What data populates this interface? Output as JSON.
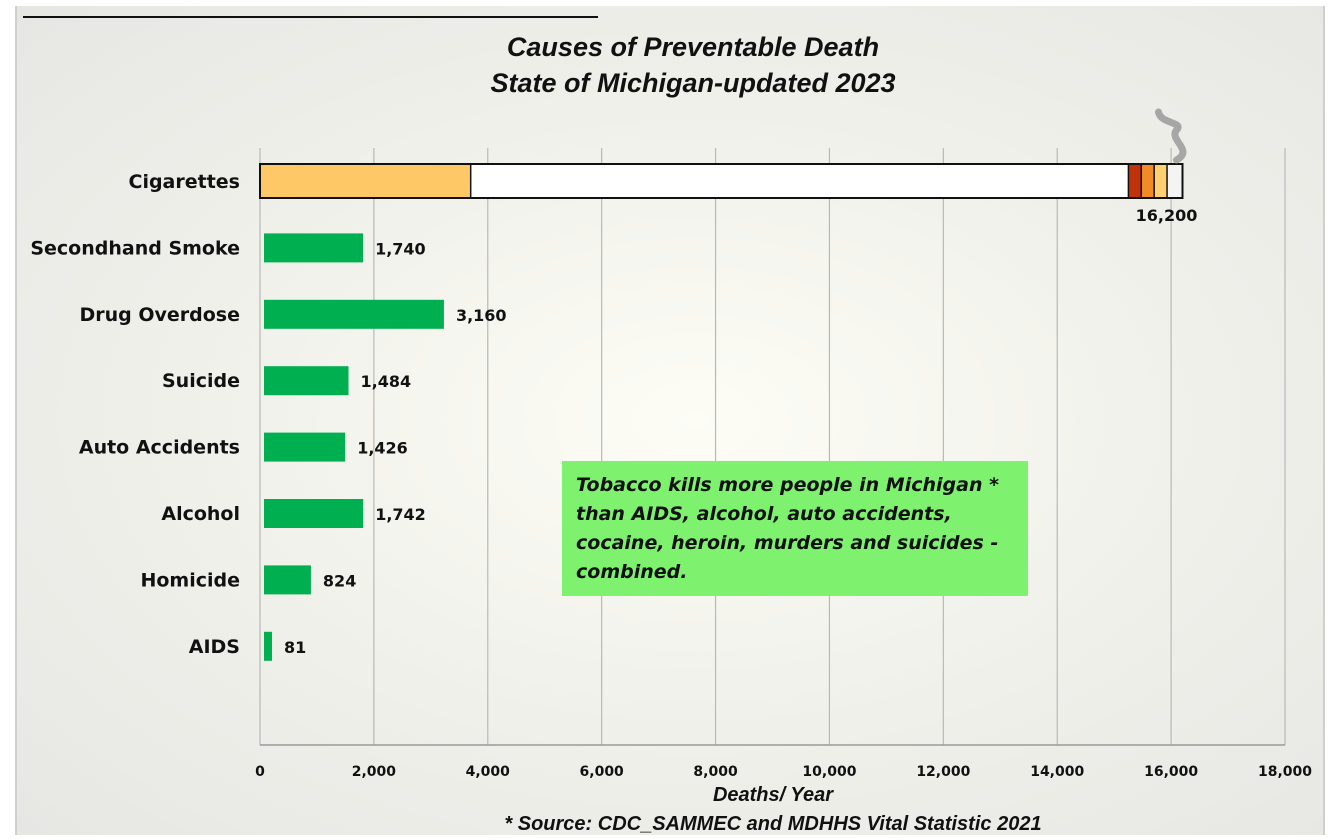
{
  "chart_data": {
    "type": "bar",
    "orientation": "horizontal",
    "title": "Causes of Preventable Death",
    "subtitle": "State of Michigan-updated 2023",
    "categories": [
      "Cigarettes",
      "Secondhand Smoke",
      "Drug Overdose",
      "Suicide",
      "Auto Accidents",
      "Alcohol",
      "Homicide",
      "AIDS"
    ],
    "values": [
      16200,
      1740,
      3160,
      1484,
      1426,
      1742,
      824,
      81
    ],
    "value_labels": [
      "16,200",
      "1,740",
      "3,160",
      "1,484",
      "1,426",
      "1,742",
      "824",
      "81"
    ],
    "xlabel": "Deaths/ Year",
    "xlim": [
      0,
      18000
    ],
    "xticks": [
      0,
      2000,
      4000,
      6000,
      8000,
      10000,
      12000,
      14000,
      16000,
      18000
    ],
    "xtick_labels": [
      "0",
      "2,000",
      "4,000",
      "6,000",
      "8,000",
      "10,000",
      "12,000",
      "14,000",
      "16,000",
      "18,000"
    ],
    "grid": "vertical",
    "colors": {
      "bar": "#00b050",
      "cigarette_filter": "#ffc866",
      "cigarette_paper": "#ffffff",
      "ember_dark": "#c0330a",
      "ember_mid": "#f08c28",
      "ember_light": "#ffd070",
      "callout_bg": "#7ef26f"
    },
    "annotation": "Tobacco kills more people in Michigan * than AIDS, alcohol, auto accidents, cocaine, heroin, murders and suicides - combined.",
    "source": "* Source: CDC_SAMMEC and MDHHS Vital  Statistic 2021"
  },
  "callout_lines": [
    "Tobacco kills more people in Michigan *",
    "than AIDS, alcohol, auto accidents,",
    "cocaine, heroin, murders and suicides -",
    "combined."
  ],
  "icons": {
    "smoke": "smoke-icon"
  }
}
